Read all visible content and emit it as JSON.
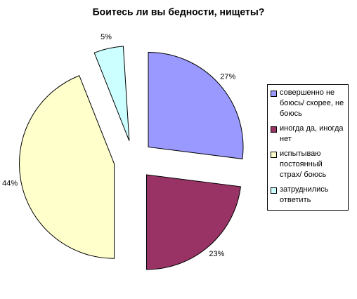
{
  "chart_data": {
    "type": "pie",
    "title": "Боитесь ли вы бедности, нищеты?",
    "categories": [
      "совершенно не боюсь/ скорее, не боюсь",
      "иногда да, иногда нет",
      "испытываю постоянный страх/ боюсь",
      "затруднились ответить"
    ],
    "values": [
      27,
      23,
      44,
      5
    ],
    "value_labels": [
      "27%",
      "23%",
      "44%",
      "5%"
    ],
    "colors": [
      "#9999ff",
      "#993366",
      "#ffffcc",
      "#ccffff"
    ],
    "legend": "right"
  }
}
